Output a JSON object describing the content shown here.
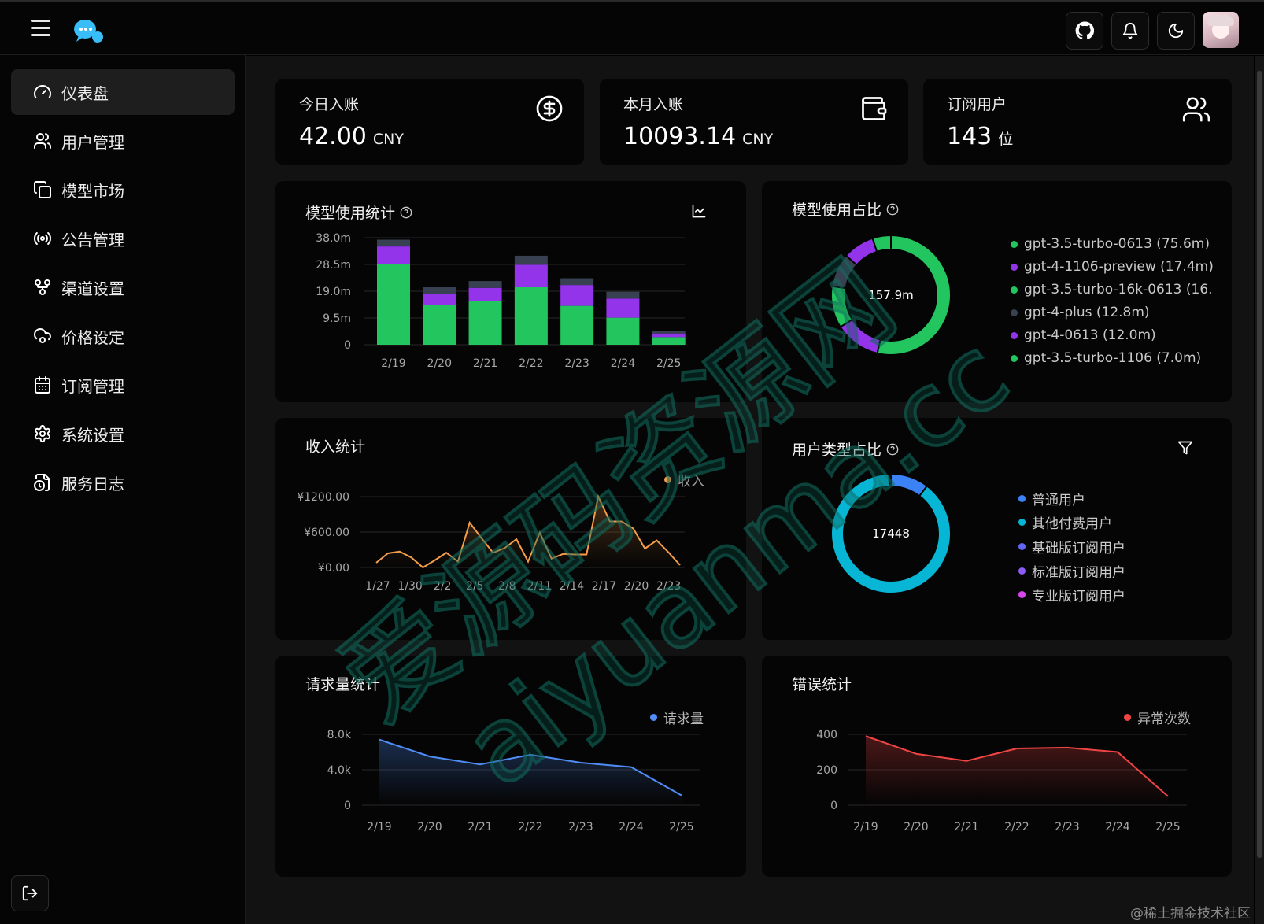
{
  "sidebar": {
    "items": [
      {
        "label": "仪表盘",
        "icon": "gauge-icon"
      },
      {
        "label": "用户管理",
        "icon": "users-icon"
      },
      {
        "label": "模型市场",
        "icon": "copy-icon"
      },
      {
        "label": "公告管理",
        "icon": "broadcast-icon"
      },
      {
        "label": "渠道设置",
        "icon": "git-fork-icon"
      },
      {
        "label": "价格设定",
        "icon": "cloud-cog-icon"
      },
      {
        "label": "订阅管理",
        "icon": "calendar-icon"
      },
      {
        "label": "系统设置",
        "icon": "settings-icon"
      },
      {
        "label": "服务日志",
        "icon": "file-clock-icon"
      }
    ],
    "active_index": 0
  },
  "stats": [
    {
      "label": "今日入账",
      "value": "42.00",
      "unit": "CNY",
      "icon": "dollar-circle-icon"
    },
    {
      "label": "本月入账",
      "value": "10093.14",
      "unit": "CNY",
      "icon": "wallet-icon"
    },
    {
      "label": "订阅用户",
      "value": "143",
      "unit": "位",
      "icon": "users-icon"
    }
  ],
  "model_usage": {
    "title": "模型使用统计",
    "chart_data": {
      "type": "bar",
      "stacked": true,
      "categories": [
        "2/19",
        "2/20",
        "2/21",
        "2/22",
        "2/23",
        "2/24",
        "2/25"
      ],
      "y_ticks": [
        "38.0m",
        "28.5m",
        "19.0m",
        "9.5m",
        "0"
      ],
      "ylim": [
        0,
        38.0
      ],
      "series": [
        {
          "values": [
            28.6,
            14.0,
            15.6,
            20.4,
            13.8,
            9.6,
            2.7
          ],
          "color": "#22c55e"
        },
        {
          "values": [
            6.3,
            4.0,
            4.6,
            8.0,
            7.4,
            6.8,
            1.3
          ],
          "color": "#9333ea"
        },
        {
          "values": [
            2.4,
            2.4,
            2.4,
            3.2,
            2.4,
            2.4,
            0.8
          ],
          "color": "#374151"
        }
      ]
    }
  },
  "model_share": {
    "title": "模型使用占比",
    "center_label": "157.9m",
    "chart_data": {
      "type": "pie",
      "total": "157.9m",
      "slices": [
        {
          "label": "gpt-3.5-turbo-0613 (75.6m)",
          "value": 75.6,
          "color": "#22c55e"
        },
        {
          "label": "gpt-4-1106-preview (17.4m)",
          "value": 17.4,
          "color": "#9333ea"
        },
        {
          "label": "gpt-3.5-turbo-16k-0613 (16.",
          "value": 16.0,
          "color": "#22c55e"
        },
        {
          "label": "gpt-4-plus (12.8m)",
          "value": 12.8,
          "color": "#374151"
        },
        {
          "label": "gpt-4-0613 (12.0m)",
          "value": 12.0,
          "color": "#9333ea"
        },
        {
          "label": "gpt-3.5-turbo-1106 (7.0m)",
          "value": 7.0,
          "color": "#22c55e"
        }
      ]
    }
  },
  "income": {
    "title": "收入统计",
    "chart_data": {
      "type": "line",
      "x_ticks": [
        "1/27",
        "1/30",
        "2/2",
        "2/5",
        "2/8",
        "2/11",
        "2/14",
        "2/17",
        "2/20",
        "2/23"
      ],
      "y_ticks": [
        "¥1200.00",
        "¥600.00",
        "¥0.00"
      ],
      "ylim": [
        0,
        1200
      ],
      "series": [
        {
          "name": "收入",
          "color": "#f59e4a",
          "values": [
            80,
            240,
            270,
            170,
            0,
            120,
            250,
            100,
            760,
            500,
            250,
            330,
            480,
            100,
            590,
            150,
            230,
            220,
            220,
            1200,
            780,
            780,
            660,
            320,
            460,
            260,
            40
          ]
        }
      ]
    }
  },
  "user_types": {
    "title": "用户类型占比",
    "center_label": "17448",
    "chart_data": {
      "type": "pie",
      "total": "17448",
      "slices": [
        {
          "label": "普通用户",
          "value": 1800,
          "color": "#3b82f6"
        },
        {
          "label": "其他付费用户",
          "value": 15560,
          "color": "#06b6d4"
        },
        {
          "label": "基础版订阅用户",
          "value": 40,
          "color": "#6366f1"
        },
        {
          "label": "标准版订阅用户",
          "value": 30,
          "color": "#8b5cf6"
        },
        {
          "label": "专业版订阅用户",
          "value": 18,
          "color": "#d946ef"
        }
      ]
    }
  },
  "requests": {
    "title": "请求量统计",
    "chart_data": {
      "type": "area",
      "categories": [
        "2/19",
        "2/20",
        "2/21",
        "2/22",
        "2/23",
        "2/24",
        "2/25"
      ],
      "y_ticks": [
        "8.0k",
        "4.0k",
        "0"
      ],
      "ylim": [
        0,
        8000
      ],
      "series": [
        {
          "name": "请求量",
          "color": "#4f8df5",
          "values": [
            7400,
            5500,
            4600,
            5700,
            4800,
            4300,
            1100
          ]
        }
      ]
    }
  },
  "errors": {
    "title": "错误统计",
    "chart_data": {
      "type": "area",
      "categories": [
        "2/19",
        "2/20",
        "2/21",
        "2/22",
        "2/23",
        "2/24",
        "2/25"
      ],
      "y_ticks": [
        "400",
        "200",
        "0"
      ],
      "ylim": [
        0,
        400
      ],
      "series": [
        {
          "name": "异常次数",
          "color": "#ef4444",
          "values": [
            390,
            290,
            250,
            320,
            325,
            300,
            50
          ]
        }
      ]
    }
  },
  "watermark": {
    "line1": "爱源码资源网",
    "line2": "aiyuanma.cc"
  },
  "footer_note": "@稀土掘金技术社区"
}
